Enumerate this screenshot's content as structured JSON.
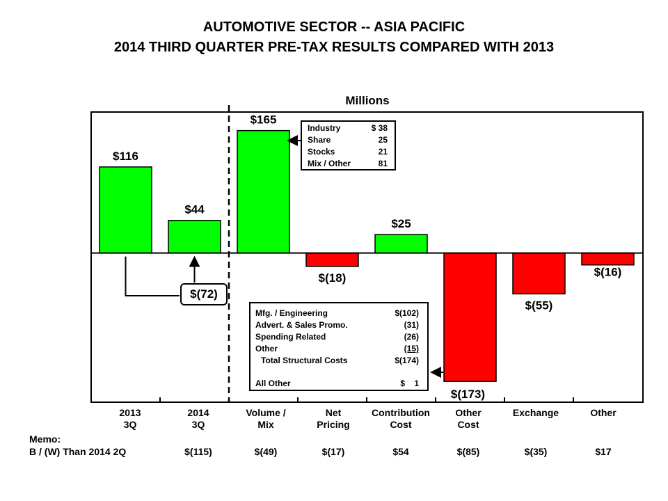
{
  "title_line1": "AUTOMOTIVE SECTOR -- ASIA PACIFIC",
  "title_line2": "2014 THIRD QUARTER PRE-TAX RESULTS COMPARED WITH 2013",
  "units": "Millions",
  "chart_data": {
    "type": "bar",
    "categories": [
      "2013\n3Q",
      "2014\n3Q",
      "Volume /\nMix",
      "Net\nPricing",
      "Contribution\nCost",
      "Other\nCost",
      "Exchange",
      "Other"
    ],
    "values": [
      116,
      44,
      165,
      -18,
      25,
      -173,
      -55,
      -16
    ],
    "data_labels": [
      "$116",
      "$44",
      "$165",
      "$(18)",
      "$25",
      "$(173)",
      "$(55)",
      "$(16)"
    ],
    "ylim": [
      -200,
      190
    ],
    "colors": {
      "positive": "#00ff00",
      "negative": "#ff0000"
    },
    "grid": false,
    "change_label": "$(72)"
  },
  "top_box": {
    "rows": [
      {
        "label": "Industry",
        "value": "$ 38"
      },
      {
        "label": "Share",
        "value": "25"
      },
      {
        "label": "Stocks",
        "value": "21"
      },
      {
        "label": "Mix / Other",
        "value": "81"
      }
    ]
  },
  "bottom_box": {
    "rows": [
      {
        "label": "Mfg. / Engineering",
        "value": "$(102)"
      },
      {
        "label": "Advert. & Sales Promo.",
        "value": "(31)"
      },
      {
        "label": "Spending Related",
        "value": "(26)"
      },
      {
        "label": "Other",
        "value": "(15)"
      },
      {
        "label": "Total Structural Costs",
        "value": "$(174)"
      },
      {
        "label": "All Other",
        "value": "$    1"
      }
    ]
  },
  "memo": {
    "title": "Memo:",
    "row_label": "B / (W) Than 2014 2Q",
    "values": [
      "$(115)",
      "$(49)",
      "$(17)",
      "$54",
      "$(85)",
      "$(35)",
      "$17"
    ]
  }
}
